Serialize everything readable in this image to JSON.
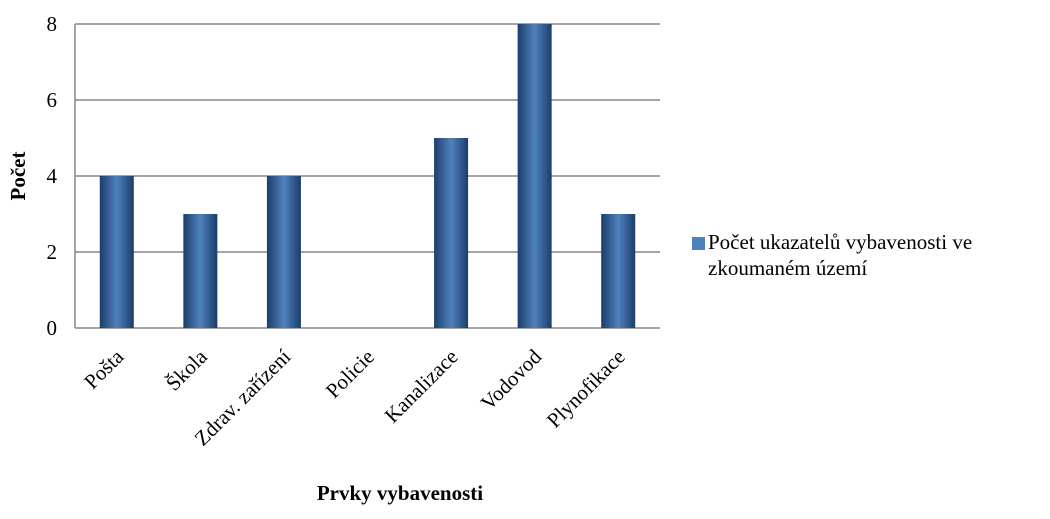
{
  "chart_data": {
    "type": "bar",
    "x_label": "Prvky vybavenosti",
    "y_label": "Počet",
    "categories": [
      "Pošta",
      "Škola",
      "Zdrav. zařízení",
      "Policie",
      "Kanalizace",
      "Vodovod",
      "Plynofikace"
    ],
    "series": [
      {
        "name": "Počet ukazatelů vybavenosti ve zkoumaném území",
        "color": "#4f81bd",
        "values": [
          4,
          3,
          4,
          0,
          5,
          8,
          3
        ]
      }
    ],
    "ylim": [
      0,
      8
    ],
    "yticks": [
      0,
      2,
      4,
      6,
      8
    ],
    "grid": true,
    "legend": "right"
  }
}
